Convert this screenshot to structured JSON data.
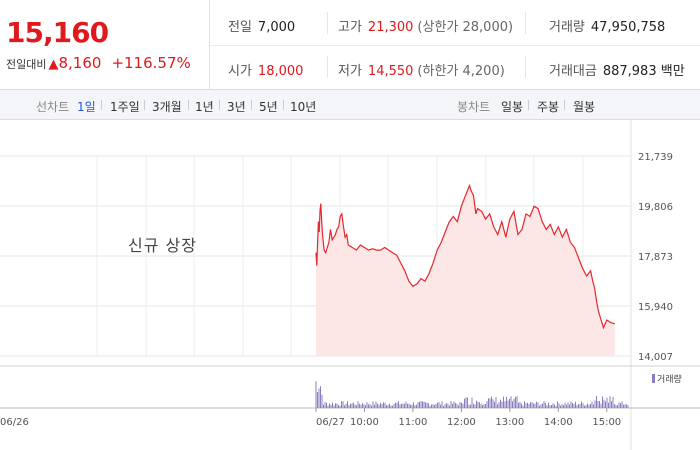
{
  "header": {
    "price": "15,160",
    "change_label": "전일대비",
    "change_arrow": "▲",
    "change_value": "8,160",
    "change_percent": "+116.57%",
    "prev_close_label": "전일",
    "prev_close": "7,000",
    "open_label": "시가",
    "open": "18,000",
    "high_label": "고가",
    "high": "21,300",
    "high_sub": "(상한가 28,000)",
    "low_label": "저가",
    "low": "14,550",
    "low_sub": "(하한가 4,200)",
    "volume_label": "거래량",
    "volume": "47,950,758",
    "value_label": "거래대금",
    "value": "887,983 백만"
  },
  "period_bar": {
    "line_title": "선차트",
    "line_options": [
      "1일",
      "1주일",
      "3개월",
      "1년",
      "3년",
      "5년",
      "10년"
    ],
    "line_selected": "1일",
    "candle_title": "봉차트",
    "candle_options": [
      "일봉",
      "주봉",
      "월봉"
    ]
  },
  "chart_data": {
    "type": "area",
    "notice": "신규 상장",
    "y_ticks": [
      "21,739",
      "19,806",
      "17,873",
      "15,940",
      "14,007"
    ],
    "y_tick_values": [
      21739,
      19806,
      17873,
      15940,
      14007
    ],
    "ylim": [
      14007,
      21739
    ],
    "x_tick_labels": [
      "06/26",
      "06/27",
      "10:00",
      "11:00",
      "12:00",
      "13:00",
      "14:00",
      "15:00"
    ],
    "x_tick_minutes": [
      null,
      540,
      600,
      660,
      720,
      780,
      840,
      900
    ],
    "series": [
      {
        "type": "area",
        "x_minutes": [
          540,
          541,
          542,
          543,
          544,
          545,
          546,
          547,
          548,
          549,
          550,
          552,
          554,
          556,
          558,
          560,
          562,
          564,
          566,
          568,
          570,
          572,
          574,
          576,
          578,
          580,
          585,
          590,
          595,
          600,
          605,
          610,
          615,
          620,
          625,
          630,
          635,
          640,
          645,
          650,
          655,
          660,
          665,
          670,
          675,
          680,
          685,
          690,
          695,
          700,
          705,
          710,
          715,
          720,
          725,
          730,
          732,
          735,
          738,
          740,
          745,
          750,
          755,
          760,
          765,
          770,
          775,
          780,
          785,
          790,
          795,
          800,
          805,
          810,
          815,
          820,
          825,
          830,
          835,
          840,
          845,
          850,
          855,
          860,
          865,
          870,
          875,
          880,
          882,
          885,
          888,
          890,
          893,
          896,
          900,
          905,
          910
        ],
        "values": [
          18000,
          17500,
          18400,
          19200,
          18800,
          19600,
          19900,
          19200,
          18700,
          18400,
          18100,
          18000,
          18200,
          18400,
          18900,
          18500,
          18600,
          18700,
          18900,
          19000,
          19400,
          19500,
          19000,
          18600,
          18700,
          18300,
          18200,
          18100,
          18300,
          18200,
          18100,
          18150,
          18100,
          18100,
          18200,
          18100,
          18000,
          17900,
          17600,
          17300,
          16900,
          16700,
          16800,
          17000,
          16900,
          17200,
          17600,
          18100,
          18400,
          18800,
          19200,
          19400,
          19200,
          19800,
          20200,
          20600,
          20400,
          20200,
          19500,
          19700,
          19600,
          19300,
          19500,
          19000,
          18700,
          19200,
          18600,
          19300,
          19600,
          18700,
          18900,
          19500,
          19400,
          19800,
          19700,
          19200,
          18900,
          19100,
          18700,
          19000,
          18600,
          18900,
          18400,
          18200,
          17800,
          17400,
          17100,
          17300,
          17000,
          16600,
          16000,
          15700,
          15400,
          15100,
          15400,
          15300,
          15250
        ]
      }
    ],
    "volume_legend": "거래량",
    "colors": {
      "line": "#e5272d",
      "area": "#fde6e6",
      "volume": "#8e7cc3",
      "up": "#e0191d"
    }
  }
}
